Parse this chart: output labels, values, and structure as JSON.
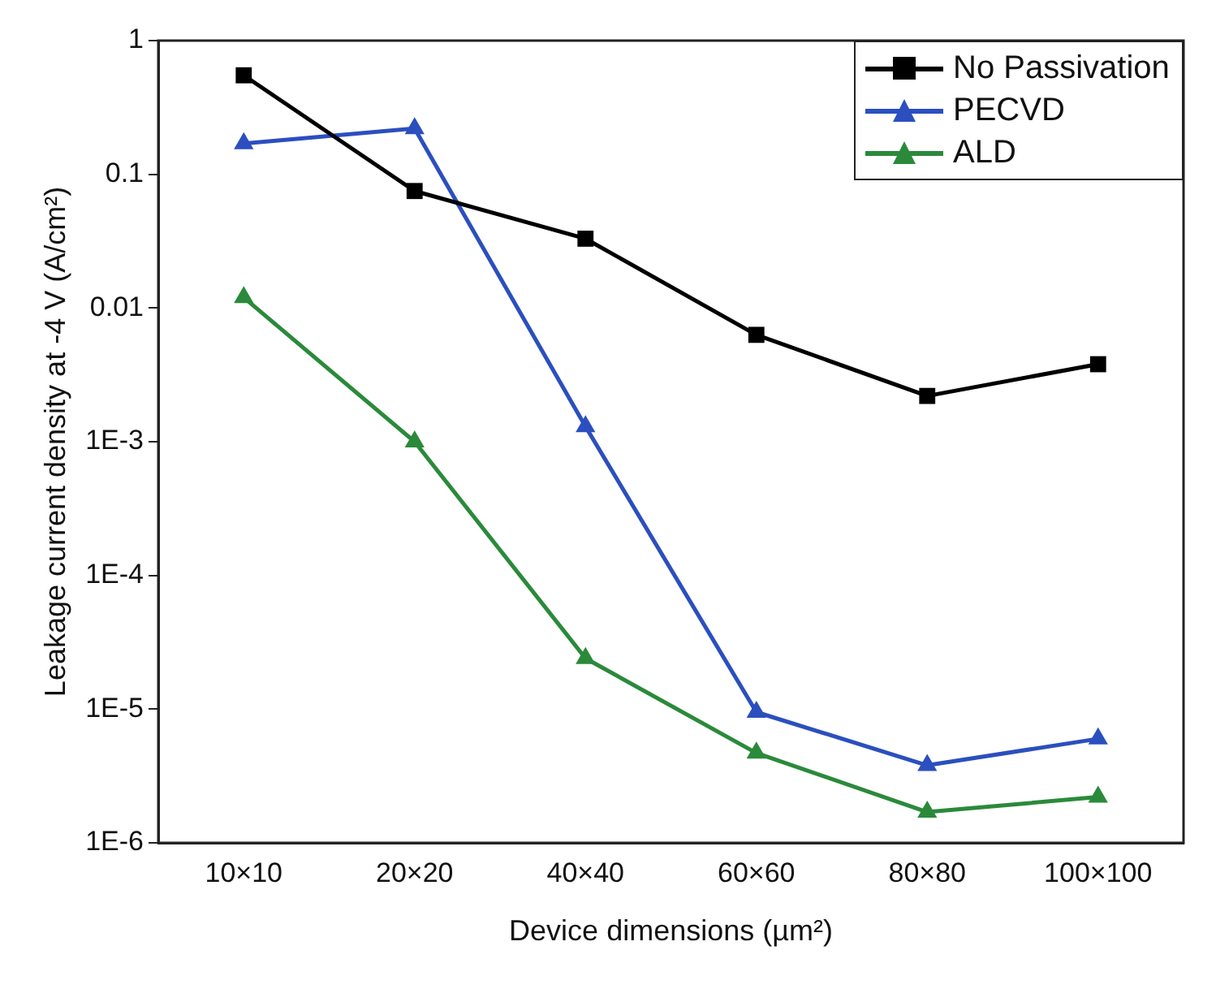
{
  "chart_data": {
    "type": "line",
    "xlabel": "Device dimensions (µm²)",
    "ylabel": "Leakage current density at -4 V (A/cm²)",
    "categories": [
      "10×10",
      "20×20",
      "40×40",
      "60×60",
      "80×80",
      "100×100"
    ],
    "log": "y",
    "ylim": [
      1e-06,
      1
    ],
    "yticks": [
      {
        "value": 1e-06,
        "label": "1E-6"
      },
      {
        "value": 1e-05,
        "label": "1E-5"
      },
      {
        "value": 0.0001,
        "label": "1E-4"
      },
      {
        "value": 0.001,
        "label": "1E-3"
      },
      0.01,
      0.1,
      1
    ],
    "grid": false,
    "legend": "top right",
    "series": [
      {
        "name": "No Passivation",
        "color": "#000000",
        "marker": "square",
        "values": [
          0.55,
          0.075,
          0.033,
          0.0063,
          0.0022,
          0.0038
        ]
      },
      {
        "name": "PECVD",
        "color": "#2b4fbf",
        "marker": "triangle",
        "values": [
          0.17,
          0.22,
          0.0013,
          9.5e-06,
          3.8e-06,
          6e-06
        ]
      },
      {
        "name": "ALD",
        "color": "#2a8a3a",
        "marker": "triangle",
        "values": [
          0.012,
          0.001,
          2.4e-05,
          4.7e-06,
          1.7e-06,
          2.2e-06
        ]
      }
    ]
  }
}
